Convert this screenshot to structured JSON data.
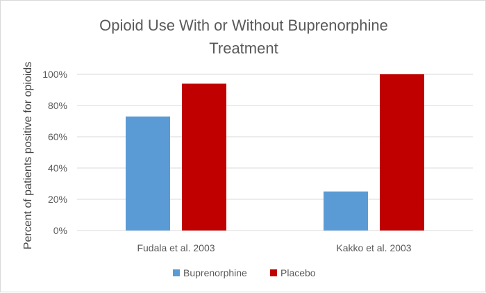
{
  "chart_data": {
    "type": "bar",
    "title_lines": [
      "Opioid Use With or Without Buprenorphine",
      "Treatment"
    ],
    "ylabel": "Percent of patients positive for opioids",
    "xlabel": "",
    "categories": [
      "Fudala et al. 2003",
      "Kakko et al. 2003"
    ],
    "series": [
      {
        "name": "Buprenorphine",
        "color": "#5b9bd5",
        "values": [
          73,
          25
        ]
      },
      {
        "name": "Placebo",
        "color": "#c00000",
        "values": [
          94,
          100
        ]
      }
    ],
    "ylim": [
      0,
      100
    ],
    "yticks": [
      0,
      20,
      40,
      60,
      80,
      100
    ],
    "ytick_labels": [
      "0%",
      "20%",
      "40%",
      "60%",
      "80%",
      "100%"
    ],
    "grid": true,
    "legend_position": "bottom"
  }
}
